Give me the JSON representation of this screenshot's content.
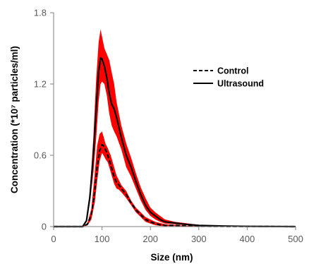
{
  "chart_data": {
    "type": "line",
    "xlabel": "Size (nm)",
    "ylabel": "Concentration (*10⁷ particles/ml)",
    "xlim": [
      0,
      500
    ],
    "ylim": [
      0,
      1.8
    ],
    "x_ticks": [
      0,
      100,
      200,
      300,
      400,
      500
    ],
    "y_ticks": [
      "0",
      "0.6",
      "1.2",
      "1.8"
    ],
    "grid": false,
    "legend_position": "top-right",
    "band_color": "#ff0000",
    "series": [
      {
        "name": "Control",
        "style": "dashed",
        "color": "#000000",
        "x": [
          0,
          60,
          70,
          78,
          85,
          90,
          95,
          100,
          103,
          107,
          112,
          118,
          125,
          130,
          135,
          140,
          150,
          160,
          170,
          180,
          190,
          200,
          210,
          220,
          230,
          250,
          270,
          300,
          350,
          400,
          500
        ],
        "y": [
          0,
          0,
          0.02,
          0.1,
          0.3,
          0.5,
          0.64,
          0.69,
          0.68,
          0.65,
          0.6,
          0.52,
          0.42,
          0.37,
          0.35,
          0.32,
          0.27,
          0.2,
          0.14,
          0.1,
          0.06,
          0.04,
          0.025,
          0.015,
          0.01,
          0.01,
          0.005,
          0.003,
          0.002,
          0.001,
          0
        ],
        "band_upper": [
          0,
          0,
          0.03,
          0.15,
          0.45,
          0.68,
          0.78,
          0.8,
          0.76,
          0.7,
          0.66,
          0.6,
          0.5,
          0.43,
          0.39,
          0.35,
          0.3,
          0.22,
          0.16,
          0.12,
          0.08,
          0.06,
          0.04,
          0.03,
          0.02,
          0.015,
          0.008,
          0.005,
          0.003,
          0.002,
          0
        ],
        "band_lower": [
          0,
          0,
          0.01,
          0.06,
          0.2,
          0.38,
          0.55,
          0.62,
          0.6,
          0.57,
          0.54,
          0.46,
          0.36,
          0.32,
          0.31,
          0.29,
          0.24,
          0.18,
          0.12,
          0.08,
          0.04,
          0.025,
          0.012,
          0.006,
          0.004,
          0.005,
          0.003,
          0.002,
          0.001,
          0,
          0
        ]
      },
      {
        "name": "Ultrasound",
        "style": "solid",
        "color": "#000000",
        "x": [
          0,
          60,
          68,
          75,
          82,
          88,
          93,
          97,
          100,
          105,
          110,
          115,
          120,
          125,
          130,
          140,
          150,
          160,
          170,
          180,
          190,
          200,
          210,
          220,
          230,
          250,
          270,
          300,
          350,
          400,
          500
        ],
        "y": [
          0,
          0,
          0.05,
          0.25,
          0.6,
          1.0,
          1.3,
          1.42,
          1.41,
          1.35,
          1.25,
          1.12,
          1.03,
          0.99,
          0.92,
          0.75,
          0.6,
          0.5,
          0.38,
          0.27,
          0.18,
          0.12,
          0.09,
          0.06,
          0.04,
          0.03,
          0.02,
          0.01,
          0.005,
          0.002,
          0
        ],
        "band_upper": [
          0,
          0,
          0.06,
          0.3,
          0.75,
          1.25,
          1.55,
          1.66,
          1.6,
          1.5,
          1.45,
          1.4,
          1.3,
          1.2,
          1.05,
          0.85,
          0.7,
          0.58,
          0.45,
          0.33,
          0.24,
          0.16,
          0.12,
          0.09,
          0.06,
          0.04,
          0.03,
          0.015,
          0.008,
          0.003,
          0
        ],
        "band_lower": [
          0,
          0,
          0.04,
          0.2,
          0.45,
          0.75,
          1.05,
          1.2,
          1.22,
          1.2,
          1.1,
          0.95,
          0.85,
          0.8,
          0.76,
          0.65,
          0.5,
          0.42,
          0.32,
          0.22,
          0.14,
          0.09,
          0.06,
          0.04,
          0.025,
          0.02,
          0.012,
          0.006,
          0.003,
          0.001,
          0
        ]
      }
    ]
  }
}
